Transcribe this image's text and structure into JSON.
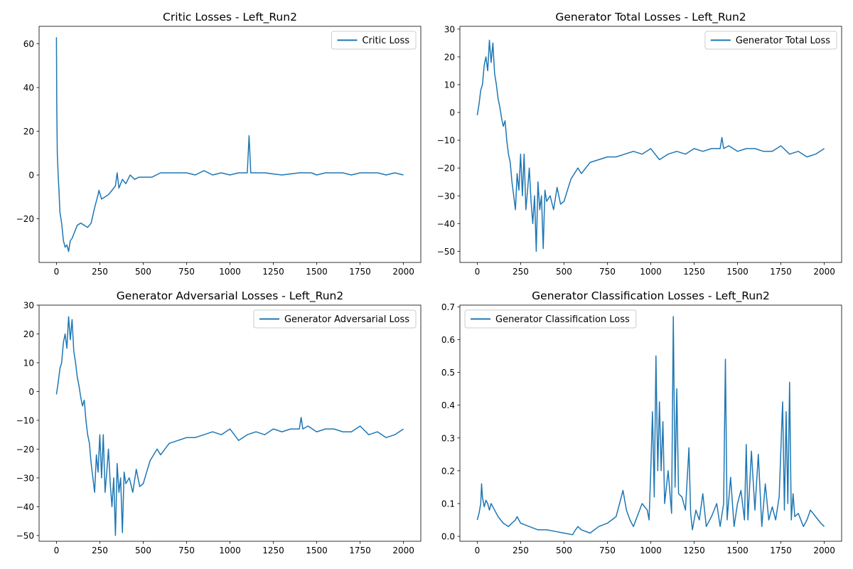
{
  "chart_data": [
    {
      "type": "line",
      "title": "Critic Losses - Left_Run2",
      "xlabel": "",
      "ylabel": "",
      "xlim": [
        -100,
        2100
      ],
      "ylim": [
        -40,
        68
      ],
      "xticks": [
        0,
        250,
        500,
        750,
        1000,
        1250,
        1500,
        1750,
        2000
      ],
      "yticks": [
        -20,
        0,
        20,
        40,
        60
      ],
      "grid": false,
      "legend_position": "upper right",
      "series": [
        {
          "name": "Critic Loss",
          "color": "#1f77b4",
          "x": [
            0,
            2,
            5,
            10,
            15,
            20,
            30,
            40,
            50,
            60,
            70,
            80,
            90,
            100,
            120,
            140,
            160,
            180,
            200,
            220,
            240,
            245,
            260,
            280,
            300,
            320,
            340,
            350,
            360,
            380,
            400,
            425,
            450,
            475,
            500,
            550,
            600,
            650,
            700,
            750,
            800,
            850,
            900,
            950,
            1000,
            1050,
            1100,
            1110,
            1120,
            1150,
            1200,
            1300,
            1400,
            1470,
            1500,
            1550,
            1600,
            1650,
            1700,
            1750,
            1800,
            1850,
            1900,
            1950,
            2000
          ],
          "values": [
            63,
            30,
            10,
            0,
            -8,
            -17,
            -22,
            -30,
            -33,
            -32,
            -35,
            -30,
            -29,
            -27,
            -23,
            -22,
            -23,
            -24,
            -22,
            -15,
            -9,
            -7,
            -11,
            -10,
            -9,
            -7,
            -5,
            1,
            -6,
            -2,
            -4,
            0,
            -2,
            -1,
            -1,
            -1,
            1,
            1,
            1,
            1,
            0,
            2,
            0,
            1,
            0,
            1,
            1,
            18,
            1,
            1,
            1,
            0,
            1,
            1,
            0,
            1,
            1,
            1,
            0,
            1,
            1,
            1,
            0,
            1,
            0
          ]
        }
      ]
    },
    {
      "type": "line",
      "title": "Generator Total Losses - Left_Run2",
      "xlabel": "",
      "ylabel": "",
      "xlim": [
        -100,
        2100
      ],
      "ylim": [
        -54,
        31
      ],
      "xticks": [
        0,
        250,
        500,
        750,
        1000,
        1250,
        1500,
        1750,
        2000
      ],
      "yticks": [
        -50,
        -40,
        -30,
        -20,
        -10,
        0,
        10,
        20,
        30
      ],
      "grid": false,
      "legend_position": "upper right",
      "series": [
        {
          "name": "Generator Total Loss",
          "color": "#1f77b4",
          "x": [
            0,
            10,
            20,
            30,
            40,
            50,
            60,
            70,
            80,
            90,
            100,
            110,
            120,
            130,
            140,
            150,
            160,
            170,
            180,
            190,
            200,
            210,
            220,
            230,
            240,
            250,
            260,
            270,
            280,
            290,
            300,
            310,
            320,
            330,
            340,
            350,
            360,
            370,
            380,
            390,
            400,
            420,
            440,
            460,
            480,
            500,
            520,
            540,
            560,
            580,
            600,
            650,
            700,
            750,
            800,
            850,
            900,
            950,
            1000,
            1050,
            1100,
            1150,
            1200,
            1250,
            1300,
            1350,
            1400,
            1410,
            1420,
            1450,
            1500,
            1550,
            1600,
            1650,
            1700,
            1750,
            1800,
            1850,
            1900,
            1950,
            2000
          ],
          "values": [
            -1,
            3,
            8,
            10,
            17,
            20,
            15,
            26,
            18,
            25,
            14,
            10,
            5,
            2,
            -2,
            -5,
            -3,
            -10,
            -15,
            -18,
            -25,
            -30,
            -35,
            -22,
            -28,
            -15,
            -30,
            -15,
            -35,
            -28,
            -20,
            -32,
            -40,
            -30,
            -50,
            -25,
            -35,
            -30,
            -49,
            -28,
            -32,
            -30,
            -35,
            -27,
            -33,
            -32,
            -28,
            -24,
            -22,
            -20,
            -22,
            -18,
            -17,
            -16,
            -16,
            -15,
            -14,
            -15,
            -13,
            -17,
            -15,
            -14,
            -15,
            -13,
            -14,
            -13,
            -13,
            -9,
            -13,
            -12,
            -14,
            -13,
            -13,
            -14,
            -14,
            -12,
            -15,
            -14,
            -16,
            -15,
            -13
          ]
        }
      ]
    },
    {
      "type": "line",
      "title": "Generator Adversarial Losses - Left_Run2",
      "xlabel": "",
      "ylabel": "",
      "xlim": [
        -100,
        2100
      ],
      "ylim": [
        -52,
        30
      ],
      "xticks": [
        0,
        250,
        500,
        750,
        1000,
        1250,
        1500,
        1750,
        2000
      ],
      "yticks": [
        -50,
        -40,
        -30,
        -20,
        -10,
        0,
        10,
        20,
        30
      ],
      "grid": false,
      "legend_position": "upper right",
      "series": [
        {
          "name": "Generator Adversarial Loss",
          "color": "#1f77b4",
          "x": [
            0,
            10,
            20,
            30,
            40,
            50,
            60,
            70,
            80,
            90,
            100,
            110,
            120,
            130,
            140,
            150,
            160,
            170,
            180,
            190,
            200,
            210,
            220,
            230,
            240,
            250,
            260,
            270,
            280,
            290,
            300,
            310,
            320,
            330,
            340,
            350,
            360,
            370,
            380,
            390,
            400,
            420,
            440,
            460,
            480,
            500,
            520,
            540,
            560,
            580,
            600,
            650,
            700,
            750,
            800,
            850,
            900,
            950,
            1000,
            1050,
            1100,
            1150,
            1200,
            1250,
            1300,
            1350,
            1400,
            1410,
            1420,
            1450,
            1500,
            1550,
            1600,
            1650,
            1700,
            1750,
            1800,
            1850,
            1900,
            1950,
            2000
          ],
          "values": [
            -1,
            3,
            8,
            10,
            17,
            20,
            15,
            26,
            18,
            25,
            14,
            10,
            5,
            2,
            -2,
            -5,
            -3,
            -10,
            -15,
            -18,
            -25,
            -30,
            -35,
            -22,
            -28,
            -15,
            -30,
            -15,
            -35,
            -28,
            -20,
            -32,
            -40,
            -30,
            -50,
            -25,
            -35,
            -30,
            -49,
            -28,
            -32,
            -30,
            -35,
            -27,
            -33,
            -32,
            -28,
            -24,
            -22,
            -20,
            -22,
            -18,
            -17,
            -16,
            -16,
            -15,
            -14,
            -15,
            -13,
            -17,
            -15,
            -14,
            -15,
            -13,
            -14,
            -13,
            -13,
            -9,
            -13,
            -12,
            -14,
            -13,
            -13,
            -14,
            -14,
            -12,
            -15,
            -14,
            -16,
            -15,
            -13
          ]
        }
      ]
    },
    {
      "type": "line",
      "title": "Generator Classification Losses - Left_Run2",
      "xlabel": "",
      "ylabel": "",
      "xlim": [
        -100,
        2100
      ],
      "ylim": [
        -0.015,
        0.705
      ],
      "xticks": [
        0,
        250,
        500,
        750,
        1000,
        1250,
        1500,
        1750,
        2000
      ],
      "yticks": [
        0.0,
        0.1,
        0.2,
        0.3,
        0.4,
        0.5,
        0.6,
        0.7
      ],
      "ytick_labels": [
        "0.0",
        "0.1",
        "0.2",
        "0.3",
        "0.4",
        "0.5",
        "0.6",
        "0.7"
      ],
      "grid": false,
      "legend_position": "upper left",
      "series": [
        {
          "name": "Generator Classification Loss",
          "color": "#1f77b4",
          "x": [
            0,
            10,
            20,
            25,
            30,
            40,
            50,
            60,
            70,
            80,
            100,
            120,
            150,
            180,
            200,
            220,
            230,
            250,
            300,
            350,
            400,
            450,
            500,
            550,
            560,
            580,
            600,
            650,
            700,
            750,
            800,
            820,
            840,
            860,
            880,
            900,
            950,
            980,
            990,
            1000,
            1010,
            1020,
            1030,
            1040,
            1050,
            1060,
            1070,
            1080,
            1100,
            1120,
            1130,
            1140,
            1150,
            1160,
            1180,
            1200,
            1220,
            1230,
            1240,
            1260,
            1280,
            1300,
            1320,
            1350,
            1380,
            1400,
            1420,
            1430,
            1440,
            1460,
            1480,
            1500,
            1520,
            1540,
            1550,
            1560,
            1580,
            1600,
            1620,
            1640,
            1660,
            1680,
            1700,
            1720,
            1740,
            1760,
            1770,
            1780,
            1790,
            1800,
            1810,
            1820,
            1830,
            1850,
            1880,
            1900,
            1920,
            1950,
            1980,
            2000
          ],
          "values": [
            0.05,
            0.07,
            0.1,
            0.16,
            0.12,
            0.09,
            0.11,
            0.1,
            0.08,
            0.1,
            0.08,
            0.06,
            0.04,
            0.03,
            0.04,
            0.05,
            0.06,
            0.04,
            0.03,
            0.02,
            0.02,
            0.015,
            0.01,
            0.005,
            0.015,
            0.03,
            0.02,
            0.01,
            0.03,
            0.04,
            0.06,
            0.1,
            0.14,
            0.08,
            0.05,
            0.03,
            0.1,
            0.08,
            0.05,
            0.2,
            0.38,
            0.12,
            0.55,
            0.2,
            0.41,
            0.2,
            0.35,
            0.1,
            0.2,
            0.07,
            0.67,
            0.15,
            0.45,
            0.13,
            0.12,
            0.08,
            0.27,
            0.07,
            0.02,
            0.08,
            0.05,
            0.13,
            0.03,
            0.06,
            0.1,
            0.03,
            0.1,
            0.54,
            0.05,
            0.18,
            0.03,
            0.1,
            0.14,
            0.05,
            0.28,
            0.05,
            0.26,
            0.08,
            0.25,
            0.03,
            0.16,
            0.05,
            0.09,
            0.05,
            0.12,
            0.41,
            0.08,
            0.38,
            0.1,
            0.47,
            0.05,
            0.13,
            0.06,
            0.07,
            0.03,
            0.05,
            0.08,
            0.06,
            0.04,
            0.03
          ]
        }
      ]
    }
  ]
}
